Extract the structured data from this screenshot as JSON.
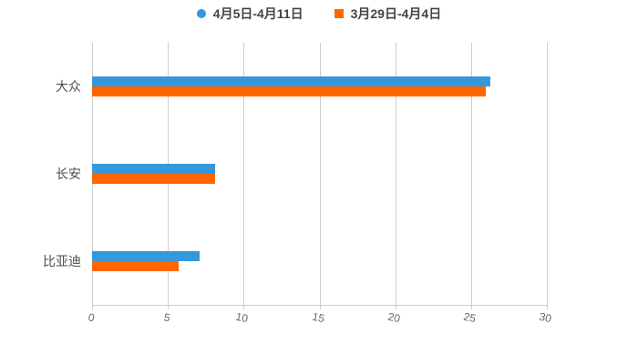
{
  "legend": {
    "items": [
      {
        "label": "4月5日-4月11日",
        "color": "#3498db",
        "marker": "circle"
      },
      {
        "label": "3月29日-4月4日",
        "color": "#ff6600",
        "marker": "square"
      }
    ]
  },
  "chart_data": {
    "type": "bar",
    "orientation": "horizontal",
    "title": "",
    "xlabel": "",
    "ylabel": "",
    "categories": [
      "大众",
      "长安",
      "比亚迪"
    ],
    "category_order": "top-to-bottom",
    "series": [
      {
        "name": "4月5日-4月11日",
        "color": "#3498db",
        "values": [
          26.3,
          8.1,
          7.1
        ]
      },
      {
        "name": "3月29日-4月4日",
        "color": "#ff6600",
        "values": [
          26.0,
          8.1,
          5.7
        ]
      }
    ],
    "xlim": [
      0,
      30
    ],
    "xticks": [
      0,
      5,
      10,
      15,
      20,
      25,
      30
    ],
    "grid": true,
    "legend_position": "top"
  },
  "style": {
    "background": "#ffffff",
    "grid_color": "#cccccc",
    "axis_color": "#cccccc",
    "tick_label_color": "#666666",
    "category_label_color": "#4d4d4d",
    "legend_text_color": "#444444"
  }
}
